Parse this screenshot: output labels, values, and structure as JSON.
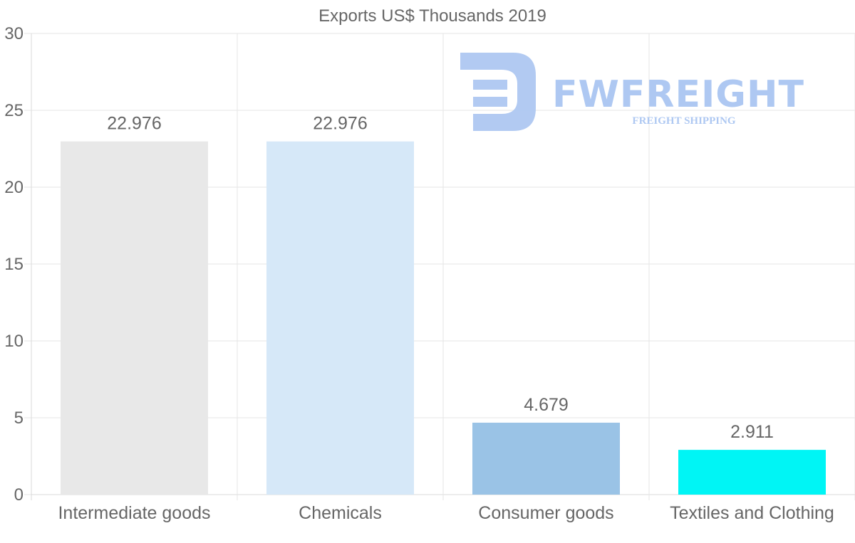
{
  "colors": {
    "text": "#666666",
    "grid": "#e6e6e6",
    "logo": "#aec8f2"
  },
  "watermark": {
    "brand": "FWFREIGHT",
    "tagline": "FREIGHT SHIPPING"
  },
  "chart_data": {
    "type": "bar",
    "title": "Exports US$ Thousands 2019",
    "xlabel": "",
    "ylabel": "",
    "ylim": [
      0,
      30
    ],
    "yticks": [
      0,
      5,
      10,
      15,
      20,
      25,
      30
    ],
    "grid": true,
    "legend": "none",
    "categories": [
      "Intermediate goods",
      "Chemicals",
      "Consumer goods",
      "Textiles and Clothing"
    ],
    "values": [
      22.976,
      22.976,
      4.679,
      2.911
    ],
    "value_labels": [
      "22.976",
      "22.976",
      "4.679",
      "2.911"
    ],
    "bar_colors": [
      "#e8e8e8",
      "#d6e8f8",
      "#9ac3e6",
      "#00f5f5"
    ]
  }
}
